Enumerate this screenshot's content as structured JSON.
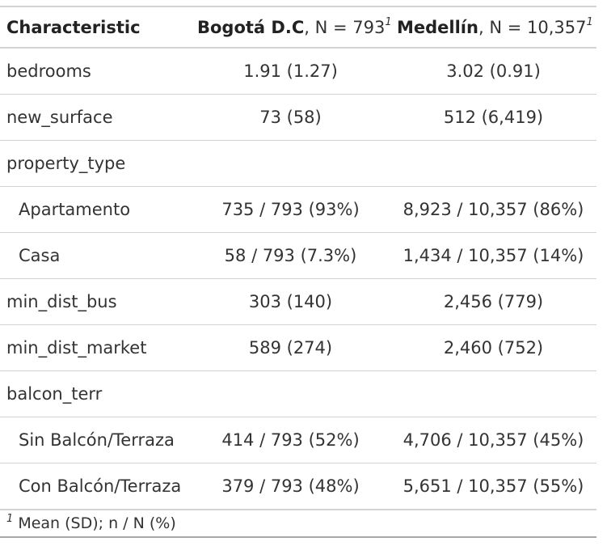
{
  "header": {
    "characteristic": "Characteristic",
    "col1_name": "Bogotá D.C",
    "col1_n": ", N = 793",
    "col2_name": "Medellín",
    "col2_n": ", N = 10,357",
    "footnote_mark": "1"
  },
  "rows": [
    {
      "label": "bedrooms",
      "c1": "1.91 (1.27)",
      "c2": "3.02 (0.91)"
    },
    {
      "label": "new_surface",
      "c1": "73 (58)",
      "c2": "512 (6,419)"
    },
    {
      "label": "property_type",
      "c1": "",
      "c2": ""
    },
    {
      "label": "Apartamento",
      "c1": "735 / 793 (93%)",
      "c2": "8,923 / 10,357 (86%)"
    },
    {
      "label": "Casa",
      "c1": "58 / 793 (7.3%)",
      "c2": "1,434 / 10,357 (14%)"
    },
    {
      "label": "min_dist_bus",
      "c1": "303 (140)",
      "c2": "2,456 (779)"
    },
    {
      "label": "min_dist_market",
      "c1": "589 (274)",
      "c2": "2,460 (752)"
    },
    {
      "label": "balcon_terr",
      "c1": "",
      "c2": ""
    },
    {
      "label": "Sin Balcón/Terraza",
      "c1": "414 / 793 (52%)",
      "c2": "4,706 / 10,357 (45%)"
    },
    {
      "label": "Con Balcón/Terraza",
      "c1": "379 / 793 (48%)",
      "c2": "5,651 / 10,357 (55%)"
    }
  ],
  "footnote": {
    "mark": "1",
    "text": " Mean (SD); n / N (%)"
  }
}
